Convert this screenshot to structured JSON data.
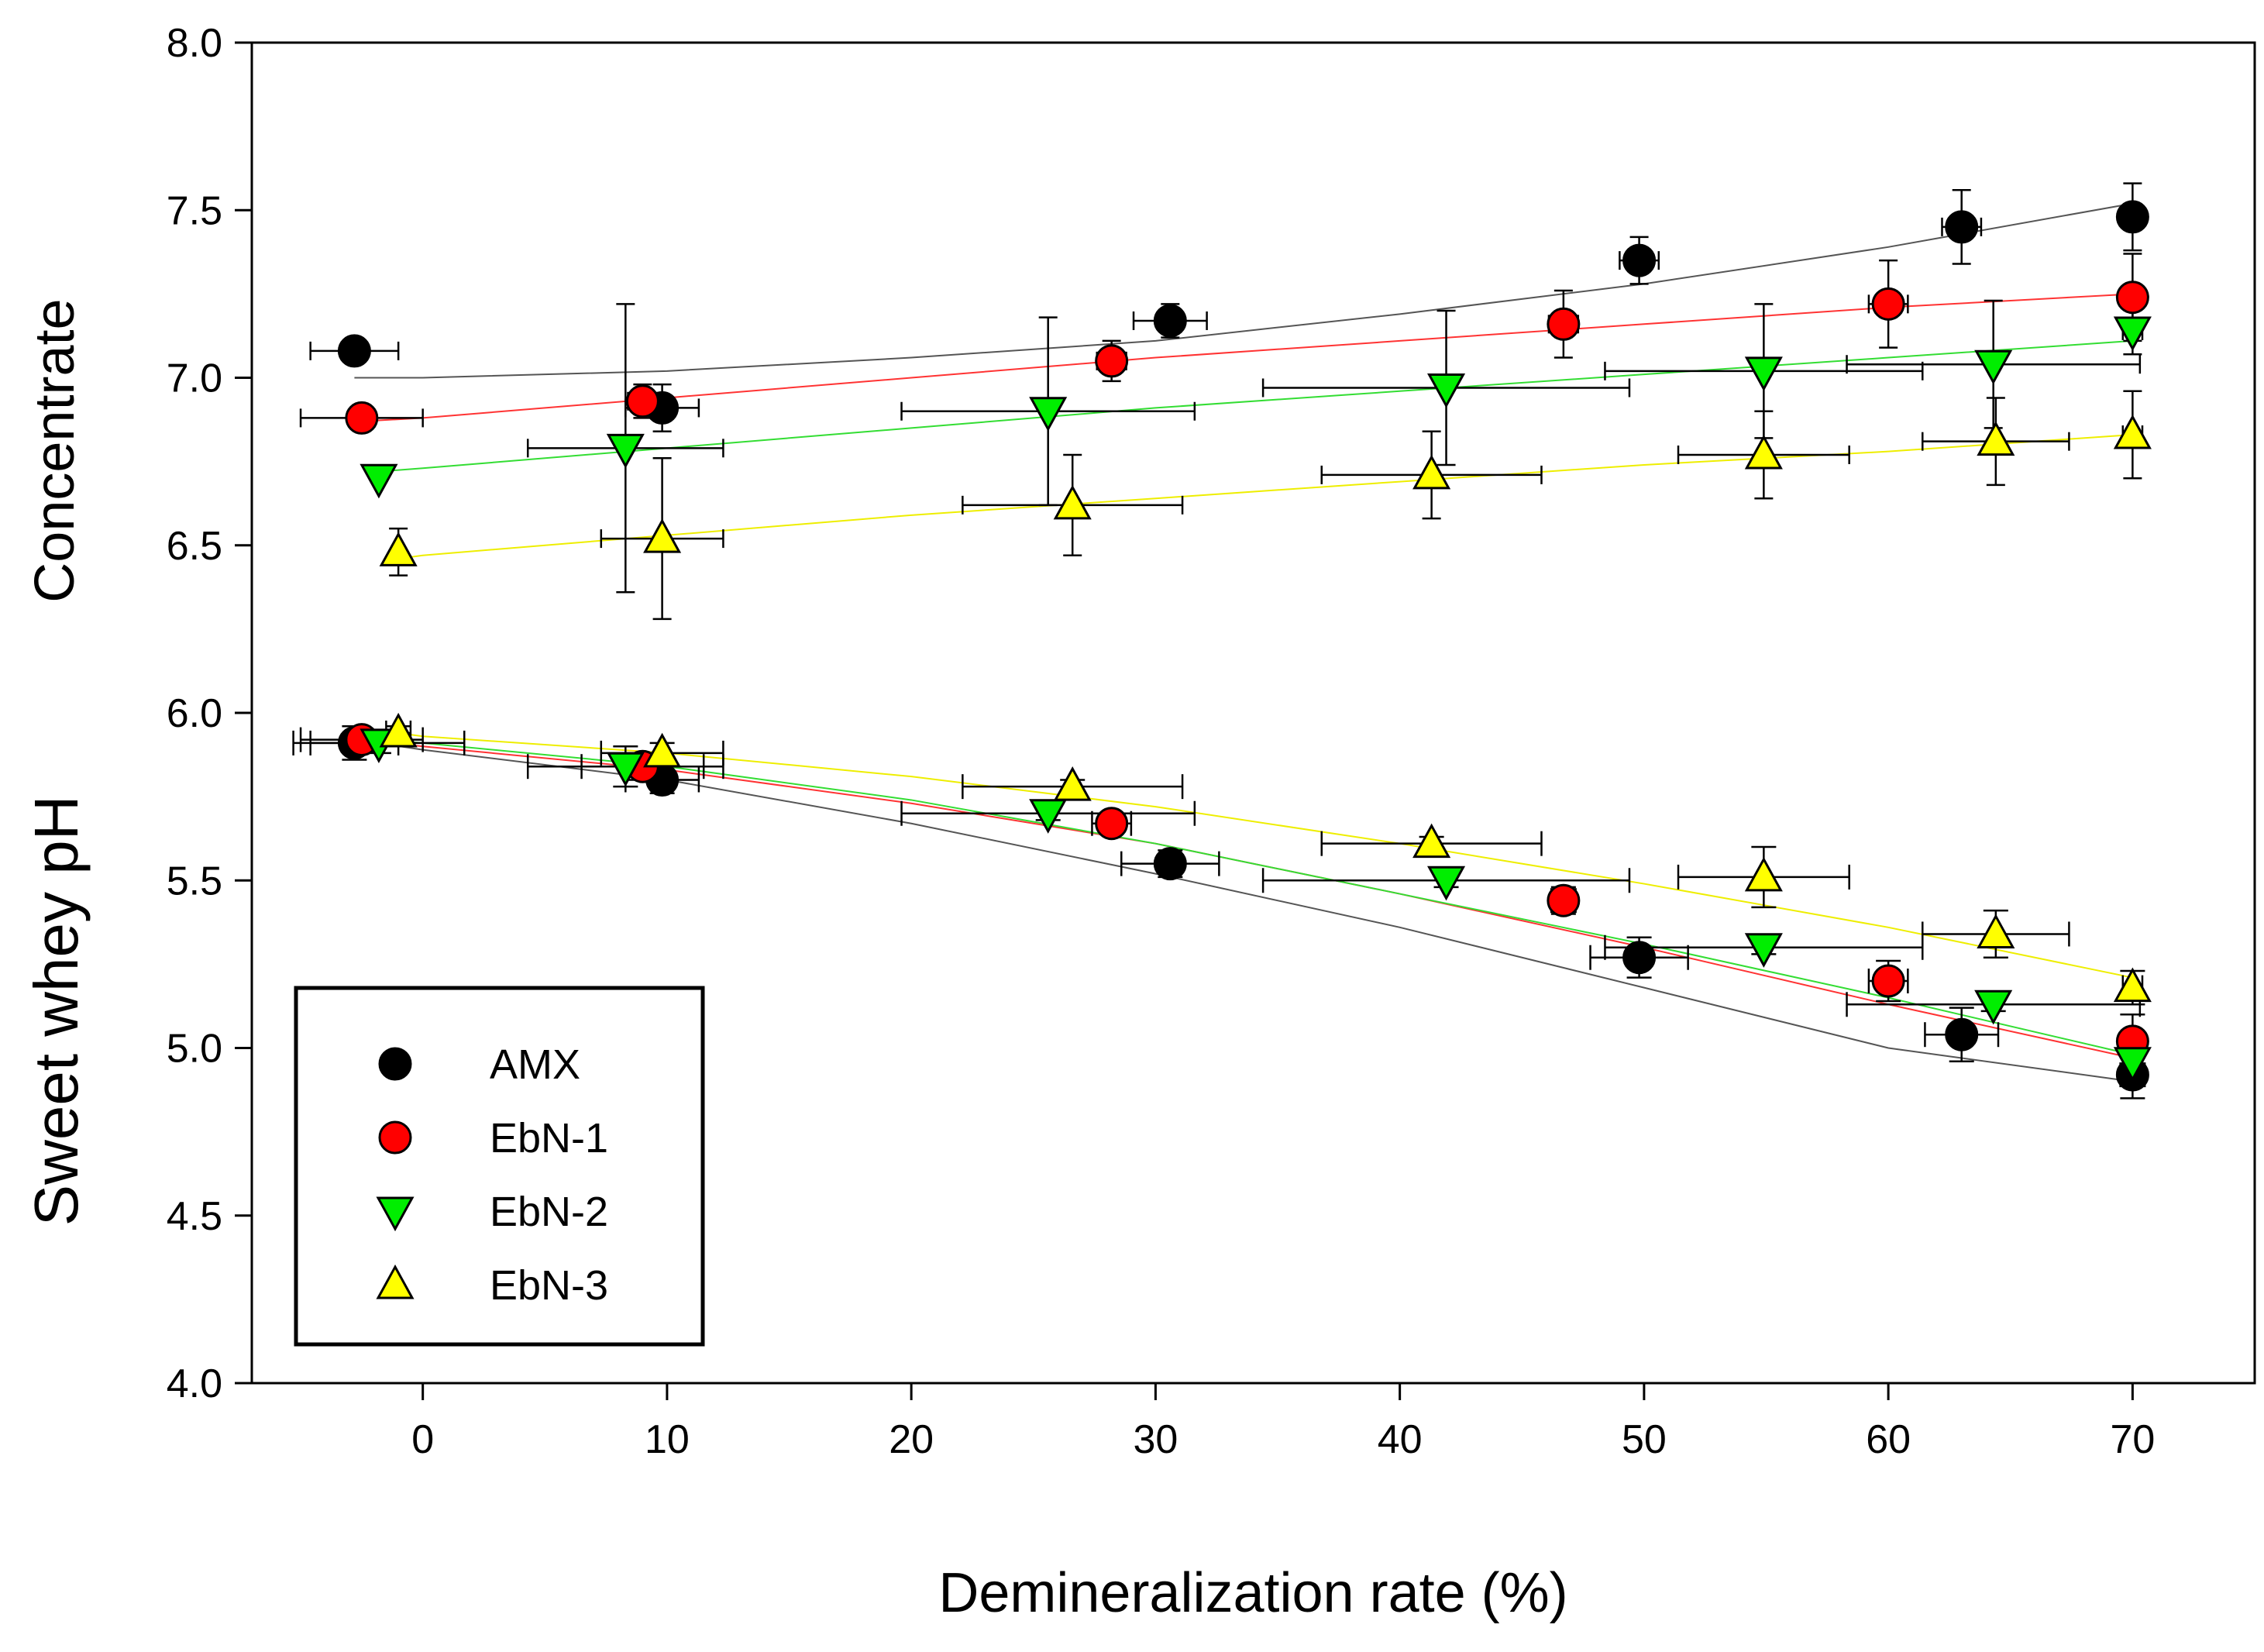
{
  "chart_data": {
    "type": "scatter",
    "xlabel": "Demineralization rate (%)",
    "ylabel_upper": "Concentrate",
    "ylabel_lower": "Sweet whey pH",
    "xlim": [
      -7,
      75
    ],
    "ylim": [
      4.0,
      8.0
    ],
    "xticks": [
      0,
      10,
      20,
      30,
      40,
      50,
      60,
      70
    ],
    "yticks": [
      4.0,
      4.5,
      5.0,
      5.5,
      6.0,
      6.5,
      7.0,
      7.5,
      8.0
    ],
    "x_tick_labels": [
      "0",
      "10",
      "20",
      "30",
      "40",
      "50",
      "60",
      "70"
    ],
    "y_tick_labels": [
      "4.0",
      "4.5",
      "5.0",
      "5.5",
      "6.0",
      "6.5",
      "7.0",
      "7.5",
      "8.0"
    ],
    "grid": false,
    "legend_position": "bottom-left",
    "series": [
      {
        "name": "AMX",
        "marker": "circle",
        "color": "#000000",
        "line_color": "#555555",
        "concentrate": [
          {
            "x": -2.8,
            "y": 7.08,
            "xerr": 1.8,
            "yerr": 0.0
          },
          {
            "x": 9.8,
            "y": 6.91,
            "xerr": 1.5,
            "yerr": 0.07
          },
          {
            "x": 30.6,
            "y": 7.17,
            "xerr": 1.5,
            "yerr": 0.05
          },
          {
            "x": 49.8,
            "y": 7.35,
            "xerr": 0.8,
            "yerr": 0.07
          },
          {
            "x": 63.0,
            "y": 7.45,
            "xerr": 0.8,
            "yerr": 0.11
          },
          {
            "x": 70.0,
            "y": 7.48,
            "xerr": 0.4,
            "yerr": 0.1
          }
        ],
        "concentrate_fit": [
          [
            -2.8,
            7.0
          ],
          [
            0,
            7.0
          ],
          [
            10,
            7.02
          ],
          [
            20,
            7.06
          ],
          [
            30,
            7.11
          ],
          [
            40,
            7.19
          ],
          [
            50,
            7.28
          ],
          [
            60,
            7.39
          ],
          [
            70,
            7.52
          ]
        ],
        "whey": [
          {
            "x": -2.8,
            "y": 5.91,
            "xerr": 1.8,
            "yerr": 0.05
          },
          {
            "x": 9.8,
            "y": 5.8,
            "xerr": 1.5,
            "yerr": 0.04
          },
          {
            "x": 30.6,
            "y": 5.55,
            "xerr": 2.0,
            "yerr": 0.04
          },
          {
            "x": 49.8,
            "y": 5.27,
            "xerr": 2.0,
            "yerr": 0.06
          },
          {
            "x": 63.0,
            "y": 5.04,
            "xerr": 1.5,
            "yerr": 0.08
          },
          {
            "x": 70.0,
            "y": 4.92,
            "xerr": 0.5,
            "yerr": 0.07
          }
        ],
        "whey_fit": [
          [
            -2.8,
            5.92
          ],
          [
            0,
            5.89
          ],
          [
            10,
            5.8
          ],
          [
            20,
            5.67
          ],
          [
            30,
            5.52
          ],
          [
            40,
            5.36
          ],
          [
            50,
            5.18
          ],
          [
            60,
            5.0
          ],
          [
            70,
            4.9
          ]
        ]
      },
      {
        "name": "EbN-1",
        "marker": "circle",
        "color": "#ff0000",
        "line_color": "#ff3333",
        "concentrate": [
          {
            "x": -2.5,
            "y": 6.88,
            "xerr": 2.5,
            "yerr": 0.0
          },
          {
            "x": 9.0,
            "y": 6.93,
            "xerr": 0.6,
            "yerr": 0.05
          },
          {
            "x": 28.2,
            "y": 7.05,
            "xerr": 0.6,
            "yerr": 0.06
          },
          {
            "x": 46.7,
            "y": 7.16,
            "xerr": 0.6,
            "yerr": 0.1
          },
          {
            "x": 60.0,
            "y": 7.22,
            "xerr": 0.8,
            "yerr": 0.13
          },
          {
            "x": 70.0,
            "y": 7.24,
            "xerr": 0.4,
            "yerr": 0.13
          }
        ],
        "concentrate_fit": [
          [
            -2.5,
            6.87
          ],
          [
            0,
            6.88
          ],
          [
            10,
            6.94
          ],
          [
            20,
            7.0
          ],
          [
            30,
            7.06
          ],
          [
            40,
            7.11
          ],
          [
            50,
            7.16
          ],
          [
            60,
            7.21
          ],
          [
            70,
            7.25
          ]
        ],
        "whey": [
          {
            "x": -2.5,
            "y": 5.92,
            "xerr": 2.5,
            "yerr": 0.02
          },
          {
            "x": 9.0,
            "y": 5.84,
            "xerr": 2.5,
            "yerr": 0.03
          },
          {
            "x": 28.2,
            "y": 5.67,
            "xerr": 0.8,
            "yerr": 0.03
          },
          {
            "x": 46.7,
            "y": 5.44,
            "xerr": 0.5,
            "yerr": 0.04
          },
          {
            "x": 60.0,
            "y": 5.2,
            "xerr": 0.8,
            "yerr": 0.06
          },
          {
            "x": 70.0,
            "y": 5.02,
            "xerr": 0.4,
            "yerr": 0.08
          }
        ],
        "whey_fit": [
          [
            -2.5,
            5.92
          ],
          [
            0,
            5.9
          ],
          [
            10,
            5.83
          ],
          [
            20,
            5.73
          ],
          [
            30,
            5.61
          ],
          [
            40,
            5.46
          ],
          [
            50,
            5.3
          ],
          [
            60,
            5.13
          ],
          [
            70,
            4.97
          ]
        ]
      },
      {
        "name": "EbN-2",
        "marker": "triangle-down",
        "color": "#00ee00",
        "line_color": "#33dd33",
        "concentrate": [
          {
            "x": -1.8,
            "y": 6.7,
            "xerr": 0.0,
            "yerr": 0.0
          },
          {
            "x": 8.3,
            "y": 6.79,
            "xerr": 4.0,
            "yerr": 0.43
          },
          {
            "x": 25.6,
            "y": 6.9,
            "xerr": 6.0,
            "yerr": 0.28
          },
          {
            "x": 41.9,
            "y": 6.97,
            "xerr": 7.5,
            "yerr": 0.23
          },
          {
            "x": 54.9,
            "y": 7.02,
            "xerr": 6.5,
            "yerr": 0.2
          },
          {
            "x": 64.3,
            "y": 7.04,
            "xerr": 6.0,
            "yerr": 0.19
          },
          {
            "x": 70.0,
            "y": 7.14,
            "xerr": 0.4,
            "yerr": 0.07
          }
        ],
        "concentrate_fit": [
          [
            -1.8,
            6.72
          ],
          [
            0,
            6.73
          ],
          [
            10,
            6.79
          ],
          [
            20,
            6.85
          ],
          [
            30,
            6.91
          ],
          [
            40,
            6.96
          ],
          [
            50,
            7.01
          ],
          [
            60,
            7.06
          ],
          [
            70,
            7.11
          ]
        ],
        "whey": [
          {
            "x": -1.8,
            "y": 5.91,
            "xerr": 3.5,
            "yerr": 0.03
          },
          {
            "x": 8.3,
            "y": 5.84,
            "xerr": 4.0,
            "yerr": 0.06
          },
          {
            "x": 25.6,
            "y": 5.7,
            "xerr": 6.0,
            "yerr": 0.02
          },
          {
            "x": 41.9,
            "y": 5.5,
            "xerr": 7.5,
            "yerr": 0.02
          },
          {
            "x": 54.9,
            "y": 5.3,
            "xerr": 6.5,
            "yerr": 0.02
          },
          {
            "x": 64.3,
            "y": 5.13,
            "xerr": 6.0,
            "yerr": 0.02
          },
          {
            "x": 70.0,
            "y": 4.96,
            "xerr": 0.4,
            "yerr": 0.03
          }
        ],
        "whey_fit": [
          [
            -1.8,
            5.92
          ],
          [
            0,
            5.91
          ],
          [
            10,
            5.84
          ],
          [
            20,
            5.74
          ],
          [
            30,
            5.61
          ],
          [
            40,
            5.46
          ],
          [
            50,
            5.31
          ],
          [
            60,
            5.15
          ],
          [
            70,
            4.98
          ]
        ]
      },
      {
        "name": "EbN-3",
        "marker": "triangle-up",
        "color": "#ffff00",
        "line_color": "#eeee00",
        "concentrate": [
          {
            "x": -1.0,
            "y": 6.48,
            "xerr": 0.0,
            "yerr": 0.07
          },
          {
            "x": 9.8,
            "y": 6.52,
            "xerr": 2.5,
            "yerr": 0.24
          },
          {
            "x": 26.6,
            "y": 6.62,
            "xerr": 4.5,
            "yerr": 0.15
          },
          {
            "x": 41.3,
            "y": 6.71,
            "xerr": 4.5,
            "yerr": 0.13
          },
          {
            "x": 54.9,
            "y": 6.77,
            "xerr": 3.5,
            "yerr": 0.13
          },
          {
            "x": 64.4,
            "y": 6.81,
            "xerr": 3.0,
            "yerr": 0.13
          },
          {
            "x": 70.0,
            "y": 6.83,
            "xerr": 0.4,
            "yerr": 0.13
          }
        ],
        "concentrate_fit": [
          [
            -1.0,
            6.46
          ],
          [
            0,
            6.47
          ],
          [
            10,
            6.53
          ],
          [
            20,
            6.59
          ],
          [
            30,
            6.64
          ],
          [
            40,
            6.69
          ],
          [
            50,
            6.74
          ],
          [
            60,
            6.78
          ],
          [
            70,
            6.83
          ]
        ],
        "whey": [
          {
            "x": -1.0,
            "y": 5.94,
            "xerr": 0.5,
            "yerr": 0.02
          },
          {
            "x": 9.8,
            "y": 5.88,
            "xerr": 2.5,
            "yerr": 0.03
          },
          {
            "x": 26.6,
            "y": 5.78,
            "xerr": 4.5,
            "yerr": 0.02
          },
          {
            "x": 41.3,
            "y": 5.61,
            "xerr": 4.5,
            "yerr": 0.02
          },
          {
            "x": 54.9,
            "y": 5.51,
            "xerr": 3.5,
            "yerr": 0.09
          },
          {
            "x": 64.4,
            "y": 5.34,
            "xerr": 3.0,
            "yerr": 0.07
          },
          {
            "x": 70.0,
            "y": 5.18,
            "xerr": 0.4,
            "yerr": 0.05
          }
        ],
        "whey_fit": [
          [
            -1.0,
            5.94
          ],
          [
            0,
            5.93
          ],
          [
            10,
            5.88
          ],
          [
            20,
            5.81
          ],
          [
            30,
            5.72
          ],
          [
            40,
            5.61
          ],
          [
            50,
            5.49
          ],
          [
            60,
            5.36
          ],
          [
            70,
            5.21
          ]
        ]
      }
    ]
  }
}
